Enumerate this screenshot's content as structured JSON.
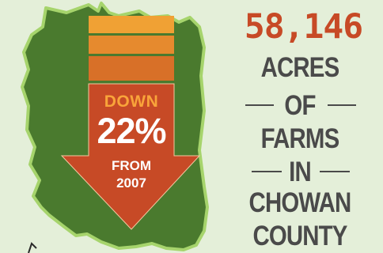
{
  "arrow": {
    "direction_word": "DOWN",
    "percent": "22%",
    "from_word": "FROM",
    "year": "2007"
  },
  "stat": {
    "value": "58,146",
    "words": [
      "ACRES",
      "OF",
      "FARMS",
      "IN",
      "CHOWAN",
      "COUNTY"
    ]
  },
  "colors": {
    "background": "#e4efd9",
    "county_fill": "#4a7a2e",
    "county_outline": "#a6d46c",
    "arrow_body": "#c74a26",
    "stripe_1": "#f0a134",
    "stripe_2": "#e68a2e",
    "stripe_3": "#d87028",
    "number": "#c74a26",
    "text": "#4a4a4a"
  }
}
